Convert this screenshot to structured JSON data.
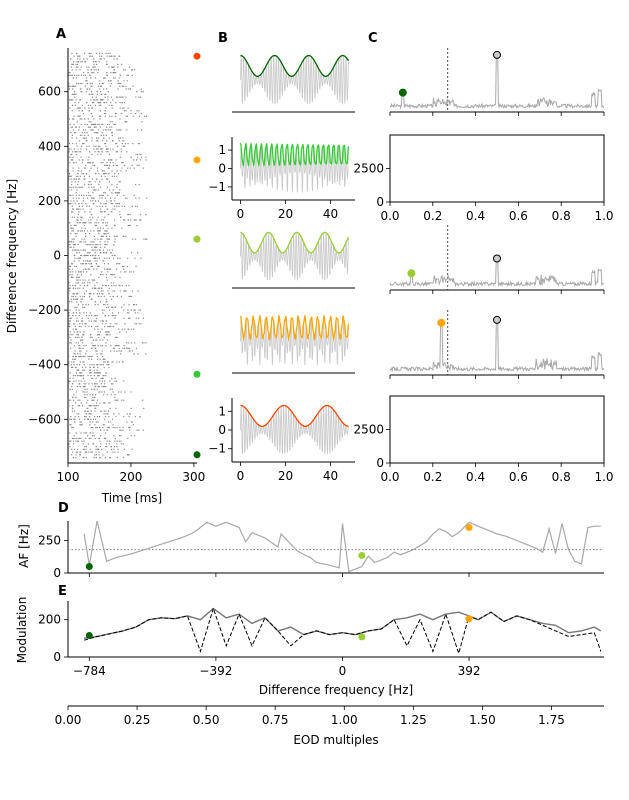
{
  "panel_labels": [
    "A",
    "B",
    "C",
    "D",
    "E"
  ],
  "colors": {
    "trace": "#a8a8a8",
    "carrier": "#c8c8c8",
    "dark_green": "#006400",
    "green": "#33cc33",
    "yellowgreen": "#9acd32",
    "orange": "#ffa500",
    "red_orange": "#ff4500"
  },
  "chart_data": [
    {
      "id": "A",
      "type": "scatter",
      "title": "",
      "xlabel": "Time [ms]",
      "ylabel": "Difference frequency [Hz]",
      "xlim": [
        100,
        305
      ],
      "ylim": [
        760,
        -760
      ],
      "xticks": [
        100,
        200,
        300
      ],
      "yticks": [
        -600,
        -400,
        -200,
        0,
        200,
        400,
        600
      ],
      "raster_df_range": [
        -740,
        740
      ],
      "markers": [
        {
          "y": -730,
          "color": "#006400"
        },
        {
          "y": -435,
          "color": "#33cc33"
        },
        {
          "y": 60,
          "color": "#9acd32"
        },
        {
          "y": 350,
          "color": "#ffa500"
        },
        {
          "y": 730,
          "color": "#ff4500"
        }
      ]
    },
    {
      "id": "B",
      "type": "line",
      "title": "",
      "xlabel": "",
      "ylabel": "",
      "xlim": [
        -2,
        50
      ],
      "xticks": [
        0,
        20,
        40
      ],
      "yticks_panels": {
        "1": [
          1,
          0,
          -1
        ],
        "4": [
          1,
          0,
          -1
        ]
      },
      "rows": [
        {
          "color": "#006400",
          "beat_freq": 0.066,
          "show_x": false,
          "show_y": false
        },
        {
          "color": "#33cc33",
          "beat_freq": 0.435,
          "show_x": true,
          "show_y": true
        },
        {
          "color": "#9acd32",
          "beat_freq": 0.08,
          "show_x": false,
          "show_y": false
        },
        {
          "color": "#ffa500",
          "beat_freq": 0.35,
          "show_x": false,
          "show_y": false
        },
        {
          "color": "#ff4500",
          "beat_freq": 0.052,
          "show_x": true,
          "show_y": true
        }
      ]
    },
    {
      "id": "C",
      "type": "line",
      "title": "",
      "xlabel": "",
      "ylabel": "",
      "xlim": [
        0,
        1.0
      ],
      "xticks": [
        0.0,
        0.2,
        0.4,
        0.6,
        0.8,
        1.0
      ],
      "yticks": [
        0,
        2500
      ],
      "vline_x": 0.27,
      "rows": [
        {
          "peaks": [
            [
              0.06,
              0.3,
              "#006400"
            ],
            [
              0.5,
              0.95,
              "#cccccc"
            ]
          ]
        },
        {
          "empty": true
        },
        {
          "peaks": [
            [
              0.1,
              0.25,
              "#9acd32"
            ],
            [
              0.5,
              0.5,
              "#cccccc"
            ]
          ]
        },
        {
          "peaks": [
            [
              0.24,
              0.85,
              "#ffa500"
            ],
            [
              0.5,
              0.9,
              "#cccccc"
            ]
          ]
        },
        {
          "empty": true
        }
      ]
    },
    {
      "id": "D",
      "type": "line",
      "title": "",
      "xlabel": "",
      "ylabel": "AF [Hz]",
      "xlim": [
        -850,
        810
      ],
      "ylim": [
        0,
        400
      ],
      "yticks": [
        0,
        250
      ],
      "hline_y": 180,
      "x": [
        -800,
        -784,
        -760,
        -730,
        -700,
        -650,
        -600,
        -550,
        -500,
        -470,
        -450,
        -420,
        -392,
        -360,
        -340,
        -320,
        -300,
        -280,
        -260,
        -240,
        -200,
        -190,
        -140,
        -110,
        -100,
        -80,
        -40,
        -10,
        0,
        20,
        40,
        60,
        80,
        100,
        120,
        140,
        160,
        180,
        200,
        220,
        240,
        260,
        280,
        300,
        320,
        340,
        360,
        392,
        420,
        450,
        480,
        510,
        540,
        570,
        600,
        620,
        640,
        660,
        680,
        700,
        720,
        740,
        760,
        780,
        800
      ],
      "y": [
        300,
        60,
        400,
        90,
        120,
        150,
        190,
        230,
        270,
        300,
        330,
        390,
        360,
        390,
        370,
        350,
        240,
        310,
        290,
        270,
        200,
        300,
        170,
        130,
        120,
        80,
        60,
        40,
        380,
        10,
        30,
        50,
        130,
        80,
        100,
        120,
        160,
        140,
        160,
        180,
        210,
        240,
        300,
        340,
        320,
        280,
        310,
        390,
        360,
        330,
        300,
        280,
        250,
        220,
        190,
        160,
        340,
        150,
        380,
        180,
        90,
        70,
        350,
        360,
        360
      ],
      "points": [
        {
          "x": -784,
          "y": 50,
          "color": "#006400"
        },
        {
          "x": 60,
          "y": 135,
          "color": "#9acd32"
        },
        {
          "x": 392,
          "y": 350,
          "color": "#ffa500"
        }
      ]
    },
    {
      "id": "E",
      "type": "line",
      "title": "",
      "xlabel": "Difference frequency [Hz]",
      "xlabel2": "EOD multiples",
      "ylabel": "Modulation",
      "xlim": [
        -850,
        810
      ],
      "ylim": [
        0,
        300
      ],
      "xticks": [
        -784,
        -392,
        0,
        392
      ],
      "yticks": [
        0,
        200
      ],
      "x2ticks": [
        "0.00",
        "0.25",
        "0.50",
        "0.75",
        "1.00",
        "1.25",
        "1.50",
        "1.75"
      ],
      "x2lim": [
        0,
        1.94
      ],
      "x": [
        -800,
        -760,
        -720,
        -680,
        -640,
        -600,
        -560,
        -520,
        -480,
        -440,
        -400,
        -360,
        -320,
        -280,
        -240,
        -200,
        -160,
        -120,
        -80,
        -40,
        0,
        40,
        80,
        120,
        160,
        200,
        240,
        280,
        320,
        360,
        392,
        420,
        460,
        500,
        540,
        580,
        620,
        660,
        700,
        740,
        780,
        800
      ],
      "y_solid": [
        100,
        110,
        125,
        140,
        160,
        200,
        210,
        205,
        220,
        200,
        260,
        210,
        230,
        180,
        210,
        140,
        160,
        120,
        140,
        120,
        130,
        120,
        140,
        150,
        200,
        210,
        230,
        200,
        230,
        240,
        220,
        200,
        240,
        190,
        220,
        200,
        180,
        170,
        130,
        140,
        160,
        140
      ],
      "y_dashed": [
        90,
        110,
        125,
        140,
        160,
        200,
        210,
        205,
        220,
        30,
        260,
        60,
        230,
        60,
        210,
        140,
        60,
        120,
        140,
        120,
        130,
        120,
        140,
        150,
        200,
        60,
        200,
        30,
        230,
        20,
        220,
        200,
        240,
        190,
        220,
        200,
        170,
        140,
        110,
        120,
        130,
        30
      ],
      "points": [
        {
          "x": -784,
          "y": 115,
          "color": "#006400"
        },
        {
          "x": 60,
          "y": 108,
          "color": "#9acd32"
        },
        {
          "x": 392,
          "y": 205,
          "color": "#ffa500"
        }
      ]
    }
  ]
}
